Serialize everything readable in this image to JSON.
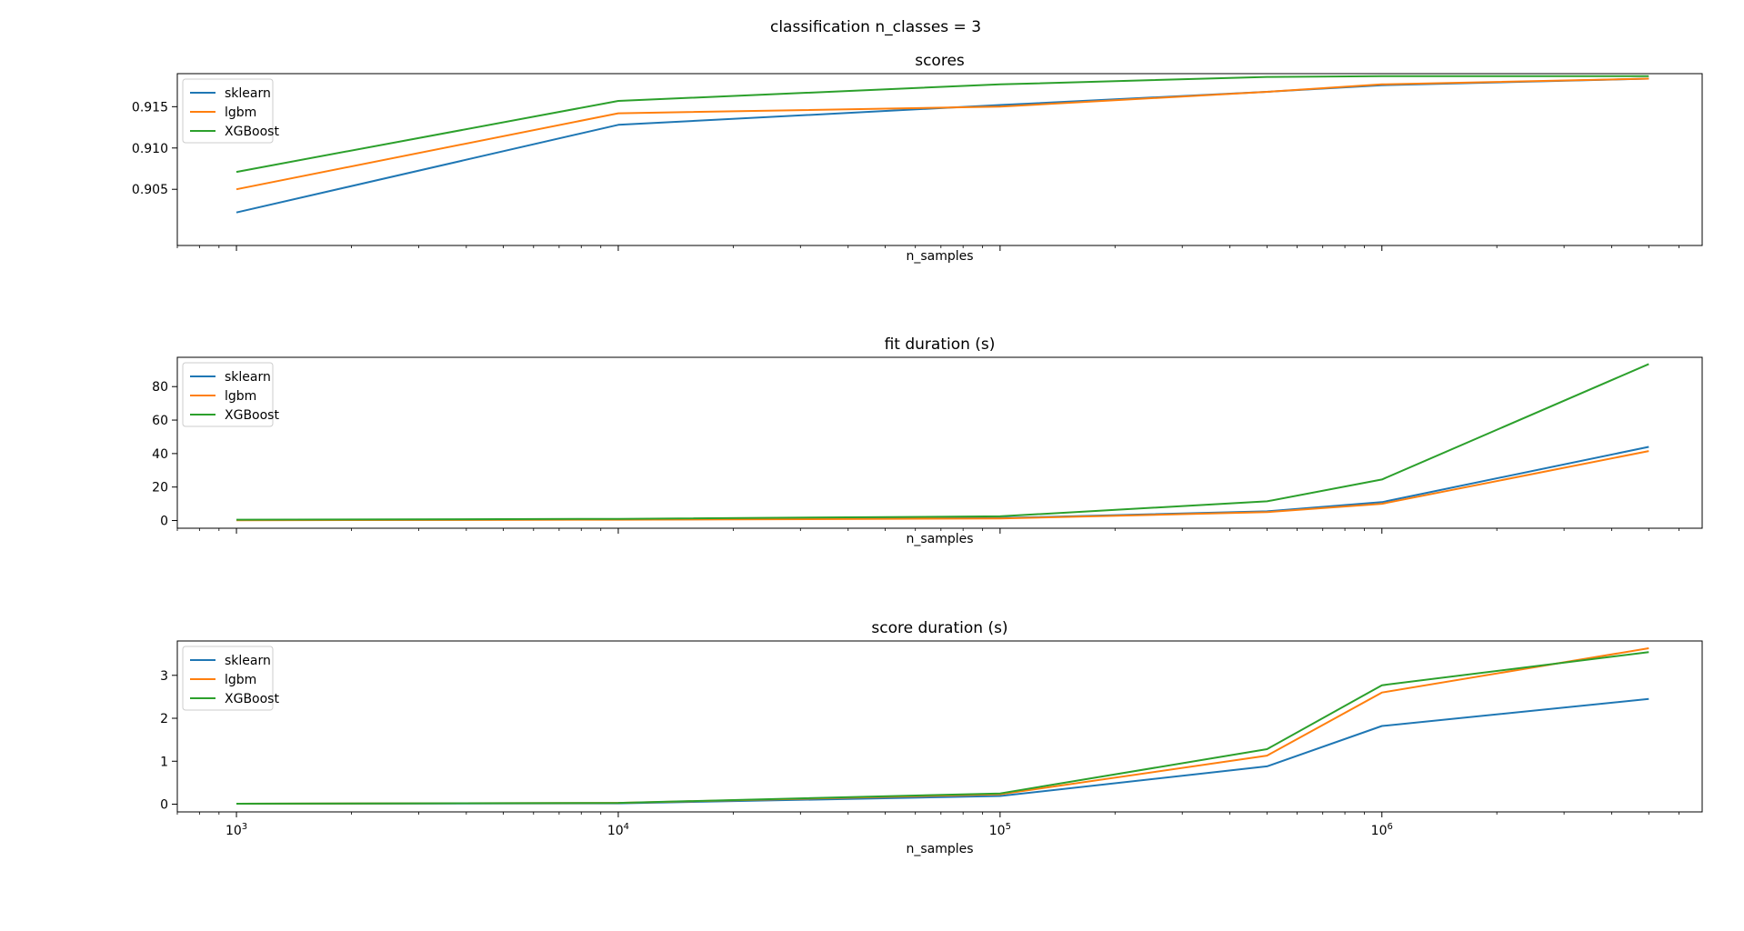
{
  "figure": {
    "suptitle": "classification n_classes = 3"
  },
  "series_colors": {
    "sklearn": "#1f77b4",
    "lgbm": "#ff7f0e",
    "XGBoost": "#2ca02c"
  },
  "chart_data": [
    {
      "type": "line",
      "title": "scores",
      "xlabel": "n_samples",
      "ylabel": "",
      "xscale": "log",
      "xlim": [
        700,
        6900000
      ],
      "ylim": [
        0.8982,
        0.919
      ],
      "x": [
        1000,
        10000,
        100000,
        500000,
        1000000,
        5000000
      ],
      "yticks": [
        0.905,
        0.91,
        0.915
      ],
      "ytick_labels": [
        "0.905",
        "0.910",
        "0.915"
      ],
      "show_xtick_labels": false,
      "legend": "upper-left",
      "grid": false,
      "series": [
        {
          "name": "sklearn",
          "values": [
            0.9022,
            0.9128,
            0.9152,
            0.9168,
            0.9176,
            0.9184
          ]
        },
        {
          "name": "lgbm",
          "values": [
            0.905,
            0.9142,
            0.915,
            0.9168,
            0.9177,
            0.9184
          ]
        },
        {
          "name": "XGBoost",
          "values": [
            0.9071,
            0.9157,
            0.9177,
            0.9186,
            0.9187,
            0.9187
          ]
        }
      ]
    },
    {
      "type": "line",
      "title": "fit duration (s)",
      "xlabel": "n_samples",
      "ylabel": "",
      "xscale": "log",
      "xlim": [
        700,
        6900000
      ],
      "ylim": [
        -4.6,
        97.5
      ],
      "x": [
        1000,
        10000,
        100000,
        500000,
        1000000,
        5000000
      ],
      "yticks": [
        0,
        20,
        40,
        60,
        80
      ],
      "ytick_labels": [
        "0",
        "20",
        "40",
        "60",
        "80"
      ],
      "show_xtick_labels": false,
      "legend": "upper-left",
      "grid": false,
      "series": [
        {
          "name": "sklearn",
          "values": [
            0.3,
            0.6,
            1.5,
            5.5,
            11.0,
            44.0
          ]
        },
        {
          "name": "lgbm",
          "values": [
            0.2,
            0.5,
            1.2,
            5.0,
            10.0,
            41.5
          ]
        },
        {
          "name": "XGBoost",
          "values": [
            0.5,
            1.0,
            2.5,
            11.5,
            24.5,
            93.5
          ]
        }
      ]
    },
    {
      "type": "line",
      "title": "score duration (s)",
      "xlabel": "n_samples",
      "ylabel": "",
      "xscale": "log",
      "xlim": [
        700,
        6900000
      ],
      "ylim": [
        -0.18,
        3.8
      ],
      "x": [
        1000,
        10000,
        100000,
        500000,
        1000000,
        5000000
      ],
      "yticks": [
        0,
        1,
        2,
        3
      ],
      "ytick_labels": [
        "0",
        "1",
        "2",
        "3"
      ],
      "show_xtick_labels": true,
      "legend": "upper-left",
      "grid": false,
      "series": [
        {
          "name": "sklearn",
          "values": [
            0.01,
            0.02,
            0.19,
            0.88,
            1.82,
            2.45
          ]
        },
        {
          "name": "lgbm",
          "values": [
            0.01,
            0.03,
            0.23,
            1.13,
            2.6,
            3.63
          ]
        },
        {
          "name": "XGBoost",
          "values": [
            0.01,
            0.03,
            0.25,
            1.28,
            2.77,
            3.54
          ]
        }
      ]
    }
  ],
  "xtick_labels": [
    {
      "base": "10",
      "exp": "3",
      "value": 1000
    },
    {
      "base": "10",
      "exp": "4",
      "value": 10000
    },
    {
      "base": "10",
      "exp": "5",
      "value": 100000
    },
    {
      "base": "10",
      "exp": "6",
      "value": 1000000
    }
  ]
}
